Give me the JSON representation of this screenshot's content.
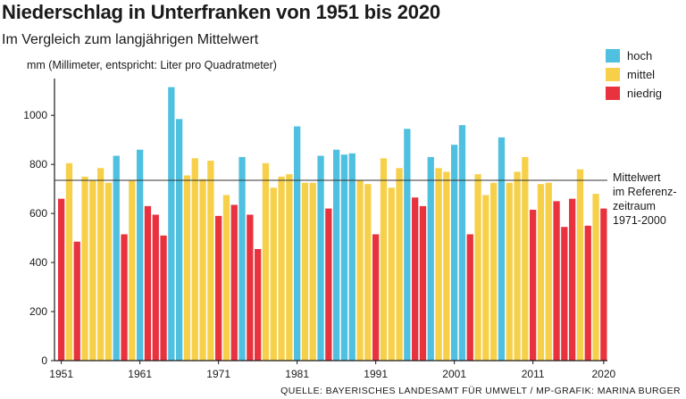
{
  "title": "Niederschlag in Unterfranken von 1951 bis 2020",
  "subtitle": "Im Vergleich zum langjährigen Mittelwert",
  "ylabel": "mm (Millimeter, entspricht: Liter pro Quadratmeter)",
  "source": "QUELLE: BAYERISCHES LANDESAMT FÜR UMWELT / MP-GRAFIK: MARINA BURGER",
  "reference_note": [
    "Mittelwert",
    "im Referenz-",
    "zeitraum",
    "1971-2000"
  ],
  "legend": [
    {
      "label": "hoch",
      "color": "#4fc0df"
    },
    {
      "label": "mittel",
      "color": "#f7d04a"
    },
    {
      "label": "niedrig",
      "color": "#e8333f"
    }
  ],
  "chart_data": {
    "type": "bar",
    "title": "Niederschlag in Unterfranken von 1951 bis 2020",
    "subtitle": "Im Vergleich zum langjährigen Mittelwert",
    "ylabel": "mm (Millimeter, entspricht: Liter pro Quadratmeter)",
    "xlabel": "",
    "ylim": [
      0,
      1150
    ],
    "yticks": [
      0,
      200,
      400,
      600,
      800,
      1000
    ],
    "xtick_labels": [
      "1951",
      "1961",
      "1971",
      "1981",
      "1991",
      "2001",
      "2011",
      "2020"
    ],
    "reference_value": 735,
    "grid": false,
    "legend_position": "top-right",
    "categories": [
      1951,
      1952,
      1953,
      1954,
      1955,
      1956,
      1957,
      1958,
      1959,
      1960,
      1961,
      1962,
      1963,
      1964,
      1965,
      1966,
      1967,
      1968,
      1969,
      1970,
      1971,
      1972,
      1973,
      1974,
      1975,
      1976,
      1977,
      1978,
      1979,
      1980,
      1981,
      1982,
      1983,
      1984,
      1985,
      1986,
      1987,
      1988,
      1989,
      1990,
      1991,
      1992,
      1993,
      1994,
      1995,
      1996,
      1997,
      1998,
      1999,
      2000,
      2001,
      2002,
      2003,
      2004,
      2005,
      2006,
      2007,
      2008,
      2009,
      2010,
      2011,
      2012,
      2013,
      2014,
      2015,
      2016,
      2017,
      2018,
      2019,
      2020
    ],
    "values": [
      660,
      805,
      485,
      750,
      735,
      785,
      725,
      835,
      515,
      735,
      860,
      630,
      595,
      510,
      1115,
      985,
      755,
      825,
      740,
      815,
      590,
      675,
      635,
      830,
      595,
      455,
      805,
      705,
      750,
      760,
      955,
      725,
      725,
      835,
      620,
      860,
      840,
      845,
      735,
      720,
      515,
      825,
      705,
      785,
      945,
      665,
      630,
      830,
      785,
      770,
      880,
      960,
      515,
      760,
      675,
      725,
      910,
      725,
      770,
      830,
      615,
      720,
      725,
      650,
      545,
      660,
      780,
      550,
      680,
      620
    ],
    "classes": [
      "niedrig",
      "mittel",
      "niedrig",
      "mittel",
      "mittel",
      "mittel",
      "mittel",
      "hoch",
      "niedrig",
      "mittel",
      "hoch",
      "niedrig",
      "niedrig",
      "niedrig",
      "hoch",
      "hoch",
      "mittel",
      "mittel",
      "mittel",
      "mittel",
      "niedrig",
      "mittel",
      "niedrig",
      "hoch",
      "niedrig",
      "niedrig",
      "mittel",
      "mittel",
      "mittel",
      "mittel",
      "hoch",
      "mittel",
      "mittel",
      "hoch",
      "niedrig",
      "hoch",
      "hoch",
      "hoch",
      "mittel",
      "mittel",
      "niedrig",
      "mittel",
      "mittel",
      "mittel",
      "hoch",
      "niedrig",
      "niedrig",
      "hoch",
      "mittel",
      "mittel",
      "hoch",
      "hoch",
      "niedrig",
      "mittel",
      "mittel",
      "mittel",
      "hoch",
      "mittel",
      "mittel",
      "mittel",
      "niedrig",
      "mittel",
      "mittel",
      "niedrig",
      "niedrig",
      "niedrig",
      "mittel",
      "niedrig",
      "mittel",
      "niedrig"
    ]
  }
}
